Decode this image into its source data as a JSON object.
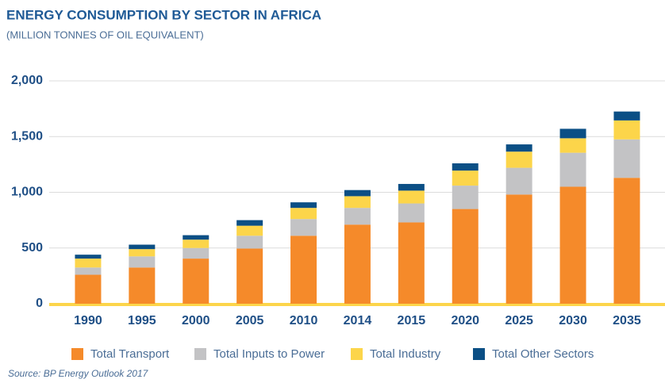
{
  "chart_data": {
    "type": "stacked_bar",
    "title": "ENERGY CONSUMPTION BY SECTOR IN AFRICA",
    "subtitle": "(MILLION TONNES OF OIL EQUIVALENT)",
    "source": "Source: BP Energy Outlook 2017",
    "categories": [
      "1990",
      "1995",
      "2000",
      "2005",
      "2010",
      "2014",
      "2015",
      "2020",
      "2025",
      "2030",
      "2035"
    ],
    "series": [
      {
        "name": "Total Transport",
        "color": "#f58a2a",
        "values": [
          260,
          325,
          405,
          495,
          610,
          710,
          730,
          850,
          980,
          1050,
          1130
        ]
      },
      {
        "name": "Total Inputs to Power",
        "color": "#c3c3c5",
        "values": [
          65,
          100,
          95,
          115,
          150,
          150,
          170,
          210,
          240,
          305,
          345
        ]
      },
      {
        "name": "Total Industry",
        "color": "#fcd54a",
        "values": [
          80,
          65,
          75,
          90,
          100,
          105,
          115,
          135,
          145,
          130,
          170
        ]
      },
      {
        "name": "Total Other Sectors",
        "color": "#0b4f85",
        "values": [
          35,
          40,
          40,
          50,
          50,
          55,
          60,
          65,
          65,
          85,
          80
        ]
      }
    ],
    "ylim": [
      0,
      2000
    ],
    "yticks": [
      0,
      500,
      {
        "value": 1000,
        "label": "1,000"
      },
      {
        "value": 1500,
        "label": "1,500"
      },
      {
        "value": 2000,
        "label": "2,000"
      }
    ],
    "grid": true
  }
}
